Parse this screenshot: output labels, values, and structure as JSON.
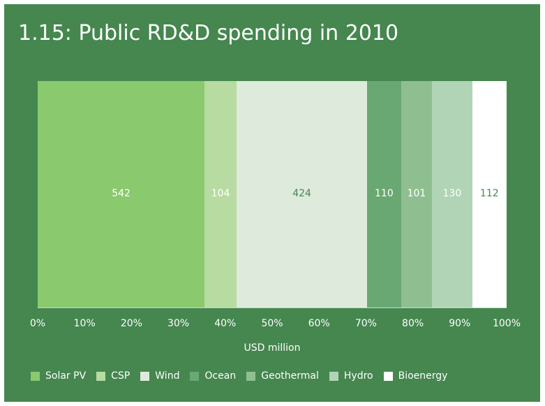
{
  "title": "1.15:  Public RD&D spending in 2010",
  "chart_data": {
    "type": "bar",
    "stacked": "100%",
    "orientation": "horizontal",
    "categories": [
      "Solar PV",
      "CSP",
      "Wind",
      "Ocean",
      "Geothermal",
      "Hydro",
      "Bioenergy"
    ],
    "values": [
      542,
      104,
      424,
      110,
      101,
      130,
      112
    ],
    "colors": [
      "#8ac96d",
      "#b7dba1",
      "#deeadb",
      "#6aa873",
      "#8fbf91",
      "#b1d4b6",
      "#ffffff"
    ],
    "label_colors": [
      "#ffffff",
      "#ffffff",
      "#45874f",
      "#ffffff",
      "#ffffff",
      "#ffffff",
      "#45874f"
    ],
    "xlabel": "USD million",
    "xticks": [
      "0%",
      "10%",
      "20%",
      "30%",
      "40%",
      "50%",
      "60%",
      "70%",
      "80%",
      "90%",
      "100%"
    ],
    "xlim": [
      0,
      100
    ],
    "legend_position": "bottom"
  }
}
